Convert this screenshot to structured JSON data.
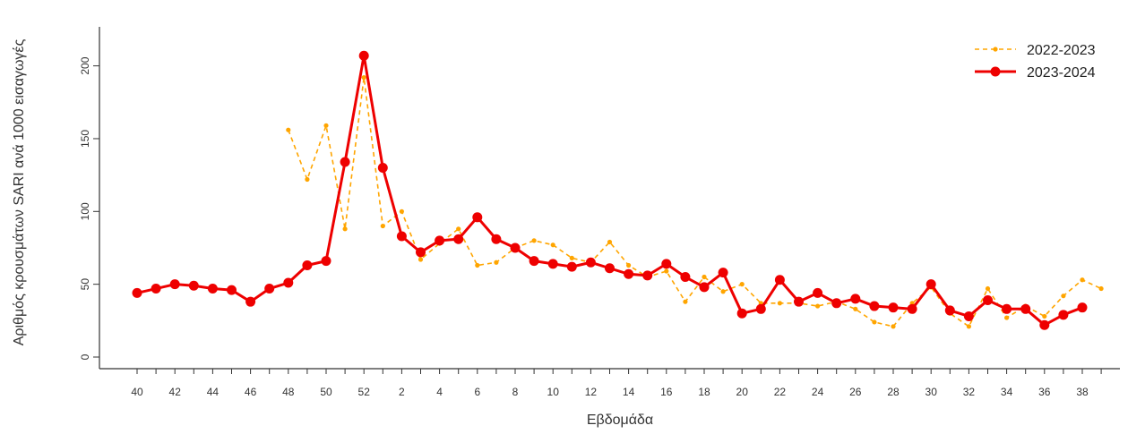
{
  "chart_data": {
    "type": "line",
    "title": "",
    "xlabel": "Εβδομάδα",
    "ylabel": "Αριθμός κρουσμάτων SARI ανά 1000 εισαγωγές",
    "ylim": [
      0,
      220
    ],
    "yticks": [
      0,
      50,
      100,
      150,
      200
    ],
    "grid": false,
    "legend_position": "top-right",
    "xtick_labels": [
      "40",
      "42",
      "44",
      "46",
      "48",
      "50",
      "52",
      "2",
      "4",
      "6",
      "8",
      "10",
      "12",
      "14",
      "16",
      "18",
      "20",
      "22",
      "24",
      "26",
      "28",
      "30",
      "32",
      "34",
      "36",
      "38"
    ],
    "weeks": [
      40,
      41,
      42,
      43,
      44,
      45,
      46,
      47,
      48,
      49,
      50,
      51,
      52,
      1,
      2,
      3,
      4,
      5,
      6,
      7,
      8,
      9,
      10,
      11,
      12,
      13,
      14,
      15,
      16,
      17,
      18,
      19,
      20,
      21,
      22,
      23,
      24,
      25,
      26,
      27,
      28,
      29,
      30,
      31,
      32,
      33,
      34,
      35,
      36,
      37,
      38,
      39
    ],
    "series": [
      {
        "name": "2022-2023",
        "color": "#ffa500",
        "style": "dashed",
        "values": [
          null,
          null,
          null,
          null,
          null,
          null,
          null,
          null,
          156,
          122,
          159,
          88,
          192,
          90,
          100,
          67,
          78,
          88,
          63,
          65,
          75,
          80,
          77,
          68,
          65,
          79,
          63,
          55,
          59,
          38,
          55,
          45,
          50,
          37,
          37,
          37,
          35,
          38,
          33,
          24,
          21,
          37,
          48,
          30,
          21,
          47,
          27,
          35,
          28,
          42,
          53,
          47
        ]
      },
      {
        "name": "2023-2024",
        "color": "#ee0000",
        "style": "solid",
        "values": [
          44,
          47,
          50,
          49,
          47,
          46,
          38,
          47,
          51,
          63,
          66,
          134,
          207,
          130,
          83,
          72,
          80,
          81,
          96,
          81,
          75,
          66,
          64,
          62,
          65,
          61,
          57,
          56,
          64,
          55,
          48,
          58,
          30,
          33,
          53,
          38,
          44,
          37,
          40,
          35,
          34,
          33,
          50,
          32,
          28,
          39,
          33,
          33,
          22,
          29,
          34,
          null
        ]
      }
    ]
  }
}
